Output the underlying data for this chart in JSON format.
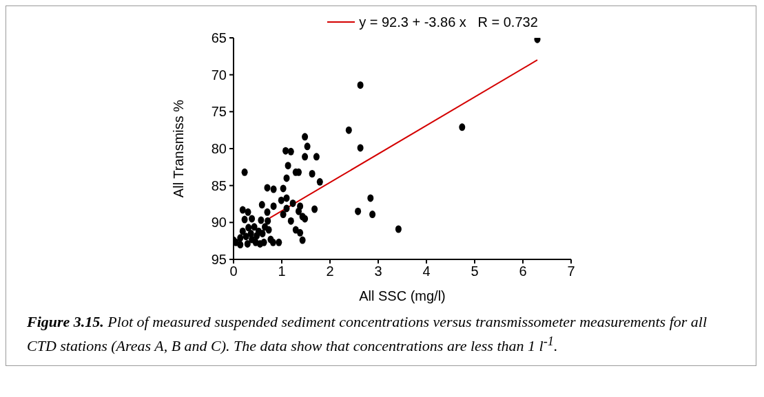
{
  "chart_data": {
    "type": "scatter",
    "xlabel": "All SSC (mg/l)",
    "ylabel": "All Transmiss %",
    "xlim": [
      0,
      7
    ],
    "xticks": [
      0,
      1,
      2,
      3,
      4,
      5,
      6,
      7
    ],
    "ylim": [
      95,
      65
    ],
    "yticks": [
      65,
      70,
      75,
      80,
      85,
      90,
      95
    ],
    "grid": false,
    "legend": "top",
    "series": [
      {
        "marker": "circle",
        "color": "#000000",
        "x": [
          6.3,
          2.63,
          2.39,
          4.74,
          2.63,
          1.48,
          1.53,
          1.48,
          1.72,
          1.08,
          1.19,
          1.13,
          1.29,
          1.35,
          1.63,
          1.79,
          1.1,
          0.23,
          0.7,
          0.83,
          1.03,
          0.99,
          1.1,
          1.23,
          0.59,
          0.83,
          1.1,
          1.38,
          1.68,
          2.84,
          2.58,
          2.88,
          3.42,
          0.19,
          0.3,
          0.7,
          1.35,
          1.03,
          1.43,
          1.48,
          0.23,
          0.38,
          0.57,
          1.19,
          0.71,
          0.73,
          1.29,
          1.38,
          1.43,
          0.19,
          0.31,
          0.43,
          0.52,
          0.14,
          0.0,
          0.05,
          0.14,
          0.29,
          0.38,
          0.46,
          0.55,
          0.63,
          0.77,
          0.82,
          0.94,
          0.26,
          0.36,
          0.48,
          0.6,
          0.65
        ],
        "values": [
          65.2,
          71.4,
          77.5,
          77.1,
          79.9,
          78.4,
          79.7,
          81.1,
          81.1,
          80.3,
          80.4,
          82.3,
          83.2,
          83.2,
          83.4,
          84.5,
          84.0,
          83.2,
          85.3,
          85.5,
          85.4,
          87.0,
          86.7,
          87.4,
          87.6,
          87.8,
          88.1,
          87.8,
          88.2,
          86.7,
          88.5,
          88.9,
          90.9,
          88.3,
          88.6,
          88.6,
          88.5,
          88.9,
          89.2,
          89.5,
          89.6,
          89.5,
          89.7,
          89.8,
          89.8,
          91.0,
          91.0,
          91.4,
          92.4,
          91.2,
          90.7,
          90.6,
          91.2,
          92.1,
          92.4,
          92.7,
          93.0,
          92.9,
          92.3,
          92.7,
          92.9,
          92.7,
          92.3,
          92.7,
          92.7,
          91.9,
          91.5,
          91.8,
          91.5,
          90.6
        ]
      },
      {
        "type": "line",
        "name": "y = 92.3 + -3.86 x   R = 0.732",
        "color": "#d40000",
        "x": [
          0.75,
          6.3
        ],
        "values": [
          89.4,
          68.0
        ]
      }
    ],
    "annotations": [
      "Figure 3.15.",
      "Plot of measured suspended sediment concentrations versus transmissometer measurements for all CTD stations (Areas A, B and C). The data show that concentrations are less than 1 l$^{-1}$."
    ]
  }
}
